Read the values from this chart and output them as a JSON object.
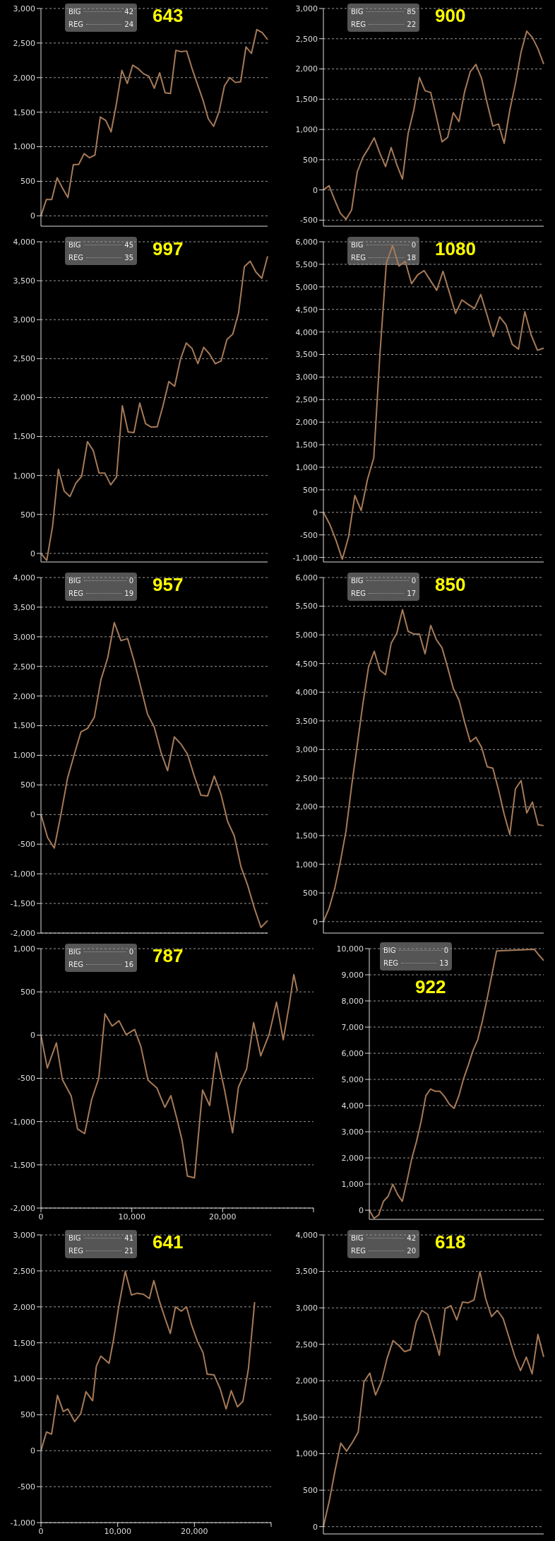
{
  "chart_data": [
    {
      "type": "line",
      "annotations": [
        "BIG",
        "42",
        "REG",
        "24",
        "643"
      ],
      "color": "#a67a58",
      "grid": "y",
      "tick_labels": "y",
      "ylim": [
        -150,
        3000
      ],
      "yticks": [
        0,
        500,
        {
          "value": 1000,
          "label": "1,000"
        },
        {
          "value": 1500,
          "label": "1,500"
        },
        {
          "value": 2000,
          "label": "2,000"
        },
        {
          "value": 2500,
          "label": "2,500"
        },
        {
          "value": 3000,
          "label": "3,000"
        }
      ],
      "categories": [
        null,
        null,
        null,
        null,
        null,
        null,
        null,
        null,
        null,
        null,
        null,
        null,
        null,
        null,
        null,
        null,
        null,
        null,
        null,
        null,
        null,
        null,
        null,
        null,
        null,
        null,
        null,
        null,
        null,
        null,
        null,
        null,
        null,
        null,
        null,
        null,
        null,
        null,
        null,
        null,
        null,
        null,
        null
      ],
      "values": [
        0,
        235,
        235,
        550,
        400,
        265,
        740,
        745,
        900,
        840,
        880,
        1430,
        1380,
        1215,
        1630,
        2105,
        1915,
        2180,
        2130,
        2055,
        2020,
        1845,
        2070,
        1780,
        1770,
        2395,
        2375,
        2385,
        2130,
        1905,
        1680,
        1405,
        1295,
        1505,
        1880,
        2000,
        1930,
        1940,
        2445,
        2350,
        2695,
        2650,
        2550
      ]
    },
    {
      "type": "line",
      "annotations": [
        "BIG",
        "85",
        "REG",
        "22",
        "900"
      ],
      "color": "#a67a58",
      "grid": "y",
      "tick_labels": "y",
      "ylim": [
        -600,
        3000
      ],
      "yticks": [
        -500,
        0,
        500,
        {
          "value": 1000,
          "label": "1,000"
        },
        {
          "value": 1500,
          "label": "1,500"
        },
        {
          "value": 2000,
          "label": "2,000"
        },
        {
          "value": 2500,
          "label": "2,500"
        },
        {
          "value": 3000,
          "label": "3,000"
        }
      ],
      "categories": [
        null,
        null,
        null,
        null,
        null,
        null,
        null,
        null,
        null,
        null,
        null,
        null,
        null,
        null,
        null,
        null,
        null,
        null,
        null,
        null,
        null,
        null,
        null,
        null,
        null,
        null,
        null,
        null,
        null,
        null,
        null,
        null,
        null,
        null,
        null,
        null,
        null,
        null,
        null,
        null
      ],
      "values": [
        0,
        70,
        -165,
        -385,
        -485,
        -330,
        300,
        540,
        690,
        860,
        605,
        385,
        700,
        415,
        180,
        935,
        1320,
        1860,
        1640,
        1610,
        1210,
        795,
        870,
        1275,
        1130,
        1625,
        1955,
        2075,
        1845,
        1430,
        1055,
        1090,
        770,
        1320,
        1760,
        2285,
        2625,
        2520,
        2330,
        2080
      ]
    },
    {
      "type": "line",
      "annotations": [
        "BIG",
        "45",
        "REG",
        "35",
        "997"
      ],
      "color": "#a67a58",
      "grid": "y",
      "tick_labels": "y",
      "ylim": [
        -110,
        4000
      ],
      "yticks": [
        0,
        500,
        {
          "value": 1000,
          "label": "1,000"
        },
        {
          "value": 1500,
          "label": "1,500"
        },
        {
          "value": 2000,
          "label": "2,000"
        },
        {
          "value": 2500,
          "label": "2,500"
        },
        {
          "value": 3000,
          "label": "3,000"
        },
        {
          "value": 3500,
          "label": "3,500"
        },
        {
          "value": 4000,
          "label": "4,000"
        }
      ],
      "categories": [
        null,
        null,
        null,
        null,
        null,
        null,
        null,
        null,
        null,
        null,
        null,
        null,
        null,
        null,
        null,
        null,
        null,
        null,
        null,
        null,
        null,
        null,
        null,
        null,
        null,
        null,
        null,
        null,
        null,
        null,
        null,
        null,
        null,
        null,
        null,
        null,
        null,
        null,
        null,
        null
      ],
      "values": [
        0,
        -90,
        350,
        1080,
        800,
        730,
        900,
        990,
        1435,
        1320,
        1030,
        1030,
        880,
        980,
        1895,
        1560,
        1550,
        1930,
        1665,
        1620,
        1625,
        1895,
        2205,
        2145,
        2490,
        2700,
        2630,
        2435,
        2645,
        2560,
        2435,
        2470,
        2745,
        2815,
        3085,
        3680,
        3750,
        3610,
        3530,
        3815
      ]
    },
    {
      "type": "line",
      "annotations": [
        "BIG",
        "0",
        "REG",
        "18",
        "1080"
      ],
      "color": "#a67a58",
      "grid": "y",
      "tick_labels": "y",
      "ylim": [
        -1100,
        6000
      ],
      "yticks": [
        {
          "value": -1000,
          "label": "-1,000"
        },
        -500,
        0,
        500,
        {
          "value": 1000,
          "label": "1,000"
        },
        {
          "value": 1500,
          "label": "1,500"
        },
        {
          "value": 2000,
          "label": "2,000"
        },
        {
          "value": 2500,
          "label": "2,500"
        },
        {
          "value": 3000,
          "label": "3,000"
        },
        {
          "value": 3500,
          "label": "3,500"
        },
        {
          "value": 4000,
          "label": "4,000"
        },
        {
          "value": 4500,
          "label": "4,500"
        },
        {
          "value": 5000,
          "label": "5,000"
        },
        {
          "value": 5500,
          "label": "5,500"
        },
        {
          "value": 6000,
          "label": "6,000"
        }
      ],
      "categories": [
        null,
        null,
        null,
        null,
        null,
        null,
        null,
        null,
        null,
        null,
        null,
        null,
        null,
        null,
        null,
        null,
        null,
        null,
        null,
        null,
        null,
        null,
        null,
        null,
        null,
        null,
        null,
        null,
        null,
        null,
        null,
        null,
        null,
        null,
        null,
        null
      ],
      "values": [
        0,
        -260,
        -620,
        -1040,
        -540,
        375,
        40,
        730,
        1205,
        3545,
        5525,
        5920,
        5460,
        5565,
        5070,
        5270,
        5360,
        5140,
        4925,
        5345,
        4885,
        4410,
        4710,
        4610,
        4520,
        4830,
        4375,
        3900,
        4335,
        4160,
        3725,
        3620,
        4450,
        3935,
        3595,
        3640
      ]
    },
    {
      "type": "line",
      "annotations": [
        "BIG",
        "0",
        "REG",
        "19",
        "957"
      ],
      "color": "#a67a58",
      "grid": "y",
      "tick_labels": "y",
      "ylim": [
        -2000,
        4000
      ],
      "yticks": [
        {
          "value": -2000,
          "label": "-2,000"
        },
        {
          "value": -1500,
          "label": "-1,500"
        },
        {
          "value": -1000,
          "label": "-1,000"
        },
        -500,
        0,
        500,
        {
          "value": 1000,
          "label": "1,000"
        },
        {
          "value": 1500,
          "label": "1,500"
        },
        {
          "value": 2000,
          "label": "2,000"
        },
        {
          "value": 2500,
          "label": "2,500"
        },
        {
          "value": 3000,
          "label": "3,000"
        },
        {
          "value": 3500,
          "label": "3,500"
        },
        {
          "value": 4000,
          "label": "4,000"
        }
      ],
      "categories": [
        null,
        null,
        null,
        null,
        null,
        null,
        null,
        null,
        null,
        null,
        null,
        null,
        null,
        null,
        null,
        null,
        null,
        null,
        null,
        null,
        null,
        null,
        null,
        null,
        null,
        null,
        null,
        null,
        null,
        null,
        null,
        null,
        null,
        null,
        null
      ],
      "values": [
        0,
        -390,
        -565,
        5,
        620,
        1015,
        1395,
        1455,
        1640,
        2275,
        2640,
        3240,
        2935,
        2970,
        2580,
        2140,
        1690,
        1475,
        1050,
        740,
        1310,
        1190,
        1015,
        650,
        325,
        315,
        650,
        345,
        -115,
        -360,
        -880,
        -1190,
        -1575,
        -1905,
        -1790
      ]
    },
    {
      "type": "line",
      "annotations": [
        "BIG",
        "0",
        "REG",
        "17",
        "850"
      ],
      "color": "#a67a58",
      "grid": "y",
      "tick_labels": "y",
      "ylim": [
        -200,
        6000
      ],
      "yticks": [
        0,
        500,
        {
          "value": 1000,
          "label": "1,000"
        },
        {
          "value": 1500,
          "label": "1,500"
        },
        {
          "value": 2000,
          "label": "2,000"
        },
        {
          "value": 2500,
          "label": "2,500"
        },
        {
          "value": 3000,
          "label": "3,000"
        },
        {
          "value": 3500,
          "label": "3,500"
        },
        {
          "value": 4000,
          "label": "4,000"
        },
        {
          "value": 4500,
          "label": "4,500"
        },
        {
          "value": 5000,
          "label": "5,000"
        },
        {
          "value": 5500,
          "label": "5,500"
        },
        {
          "value": 6000,
          "label": "6,000"
        }
      ],
      "categories": [
        null,
        null,
        null,
        null,
        null,
        null,
        null,
        null,
        null,
        null,
        null,
        null,
        null,
        null,
        null,
        null,
        null,
        null,
        null,
        null,
        null,
        null,
        null,
        null,
        null,
        null,
        null,
        null,
        null,
        null,
        null,
        null,
        null,
        null,
        null,
        null,
        null,
        null,
        null,
        null
      ],
      "values": [
        0,
        230,
        575,
        1045,
        1580,
        2365,
        3085,
        3805,
        4445,
        4715,
        4385,
        4305,
        4855,
        5030,
        5440,
        5060,
        5015,
        5015,
        4670,
        5165,
        4915,
        4775,
        4430,
        4065,
        3865,
        3480,
        3135,
        3215,
        3040,
        2700,
        2675,
        2300,
        1875,
        1520,
        2315,
        2460,
        1895,
        2085,
        1690,
        1675
      ]
    },
    {
      "type": "line",
      "annotations": [
        "BIG",
        "0",
        "REG",
        "16",
        "787"
      ],
      "color": "#a67a58",
      "grid": "y",
      "xlim": [
        0,
        30000
      ],
      "xticks": [
        0,
        {
          "value": 10000,
          "label": "10,000"
        },
        {
          "value": 20000,
          "label": "20,000"
        },
        {
          "value": 30000,
          "label": null
        }
      ],
      "ylim": [
        -2000,
        1000
      ],
      "yticks": [
        {
          "value": -2000,
          "label": "-2,000"
        },
        {
          "value": -1500,
          "label": "-1,500"
        },
        {
          "value": -1000,
          "label": "-1,000"
        },
        -500,
        0,
        500,
        {
          "value": 1000,
          "label": "1,000"
        }
      ],
      "x": [
        0,
        700,
        1700,
        2360,
        3330,
        4030,
        4810,
        5580,
        6360,
        7050,
        7830,
        8600,
        9380,
        10310,
        11010,
        11780,
        12750,
        13640,
        14300,
        14960,
        15540,
        16120,
        16900,
        17790,
        18570,
        19300,
        20190,
        21090,
        21740,
        22640,
        23410,
        24190,
        25120,
        25930,
        26670,
        27360,
        27830,
        28220
      ],
      "values": [
        0,
        -380,
        -90,
        -515,
        -705,
        -1085,
        -1140,
        -745,
        -500,
        245,
        105,
        165,
        5,
        65,
        -135,
        -520,
        -610,
        -835,
        -700,
        -965,
        -1220,
        -1630,
        -1650,
        -635,
        -815,
        -200,
        -625,
        -1130,
        -600,
        -390,
        145,
        -240,
        10,
        380,
        -55,
        370,
        700,
        510
      ]
    },
    {
      "type": "line",
      "annotations": [
        "BIG",
        "0",
        "REG",
        "13",
        "922"
      ],
      "color": "#a67a58",
      "grid": "y",
      "tick_labels": "y",
      "ylim": [
        -350,
        10000
      ],
      "yticks": [
        0,
        {
          "value": 1000,
          "label": "1,000"
        },
        {
          "value": 2000,
          "label": "2,000"
        },
        {
          "value": 3000,
          "label": "3,000"
        },
        {
          "value": 4000,
          "label": "4,000"
        },
        {
          "value": 5000,
          "label": "5,000"
        },
        {
          "value": 6000,
          "label": "6,000"
        },
        {
          "value": 7000,
          "label": "7,000"
        },
        {
          "value": 8000,
          "label": "8,000"
        },
        {
          "value": 9000,
          "label": "9,000"
        },
        {
          "value": 10000,
          "label": "10,000"
        }
      ],
      "categories": [
        null,
        null,
        null,
        null,
        null,
        null,
        null,
        null,
        null,
        null,
        null,
        null,
        null,
        null,
        null,
        null,
        null,
        null,
        null,
        null,
        null,
        null,
        null,
        null,
        null,
        null,
        null,
        null,
        null,
        null,
        null,
        null,
        null,
        null,
        null,
        null,
        null,
        null
      ],
      "values": [
        0,
        -310,
        -180,
        340,
        535,
        990,
        600,
        340,
        1120,
        1965,
        2615,
        3400,
        4375,
        4635,
        4545,
        4545,
        4335,
        4050,
        3895,
        4375,
        5025,
        5545,
        6105,
        6520,
        7240,
        8085,
        8995,
        9910,
        null,
        null,
        null,
        null,
        null,
        null,
        null,
        9975,
        9750,
        9545
      ]
    },
    {
      "type": "line",
      "annotations": [
        "BIG",
        "41",
        "REG",
        "21",
        "641"
      ],
      "color": "#a67a58",
      "grid": "y",
      "xlim": [
        0,
        30000
      ],
      "xticks": [
        0,
        {
          "value": 10000,
          "label": "10,000"
        },
        {
          "value": 20000,
          "label": "20,000"
        },
        {
          "value": 30000,
          "label": null
        }
      ],
      "ylim": [
        -1000,
        3000
      ],
      "yticks": [
        {
          "value": -1000,
          "label": "-1,000"
        },
        -500,
        0,
        500,
        {
          "value": 1000,
          "label": "1,000"
        },
        {
          "value": 1500,
          "label": "1,500"
        },
        {
          "value": 2000,
          "label": "2,000"
        },
        {
          "value": 2500,
          "label": "2,500"
        },
        {
          "value": 3000,
          "label": "3,000"
        }
      ],
      "x": [
        0,
        720,
        1390,
        2150,
        2910,
        3500,
        4390,
        5200,
        5870,
        6730,
        7220,
        7800,
        8340,
        8880,
        9460,
        10130,
        10990,
        11790,
        12560,
        13360,
        14130,
        14710,
        15380,
        16190,
        16860,
        17530,
        18300,
        18970,
        19640,
        20400,
        21120,
        21660,
        22560,
        23360,
        24130,
        24800,
        25610,
        26320,
        27040,
        27850
      ],
      "values": [
        0,
        260,
        230,
        770,
        545,
        580,
        405,
        520,
        820,
        695,
        1175,
        1315,
        1265,
        1215,
        1545,
        2000,
        2495,
        2165,
        2190,
        2175,
        2115,
        2365,
        2100,
        1835,
        1630,
        2000,
        1940,
        2000,
        1745,
        1520,
        1365,
        1065,
        1055,
        860,
        580,
        835,
        610,
        685,
        1140,
        2065
      ]
    },
    {
      "type": "line",
      "annotations": [
        "BIG",
        "42",
        "REG",
        "20",
        "618"
      ],
      "color": "#a67a58",
      "grid": "y",
      "tick_labels": "y",
      "ylim": [
        -100,
        4000
      ],
      "yticks": [
        0,
        500,
        {
          "value": 1000,
          "label": "1,000"
        },
        {
          "value": 1500,
          "label": "1,500"
        },
        {
          "value": 2000,
          "label": "2,000"
        },
        {
          "value": 2500,
          "label": "2,500"
        },
        {
          "value": 3000,
          "label": "3,000"
        },
        {
          "value": 3500,
          "label": "3,500"
        },
        {
          "value": 4000,
          "label": "4,000"
        }
      ],
      "categories": [
        null,
        null,
        null,
        null,
        null,
        null,
        null,
        null,
        null,
        null,
        null,
        null,
        null,
        null,
        null,
        null,
        null,
        null,
        null,
        null,
        null,
        null,
        null,
        null,
        null,
        null,
        null,
        null,
        null,
        null,
        null,
        null,
        null,
        null,
        null,
        null,
        null,
        null,
        null
      ],
      "values": [
        0,
        345,
        765,
        1145,
        1035,
        1155,
        1295,
        1985,
        2105,
        1805,
        1990,
        2310,
        2550,
        2485,
        2400,
        2425,
        2805,
        2965,
        2910,
        2635,
        2350,
        2990,
        3030,
        2835,
        3080,
        3070,
        3110,
        3495,
        3125,
        2880,
        2965,
        2855,
        2600,
        2340,
        2140,
        2325,
        2095,
        2635,
        2325
      ]
    }
  ]
}
